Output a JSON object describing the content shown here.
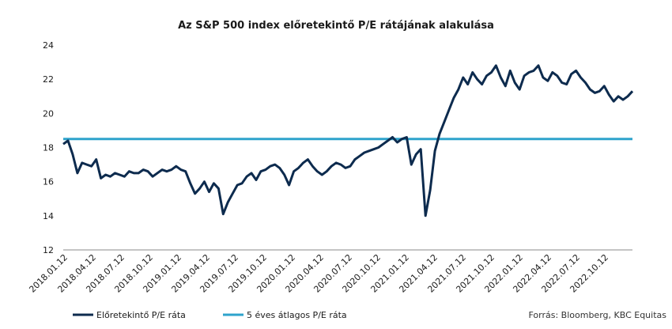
{
  "chart_data": {
    "type": "line",
    "title": "Az S&P 500 index előretekintő P/E rátájának alakulása",
    "source": "Forrás: Bloomberg, KBC Equitas",
    "ylim": [
      12,
      24
    ],
    "yticks": [
      "12",
      "14",
      "16",
      "18",
      "20",
      "22",
      "24"
    ],
    "xticks": [
      "2018.01.12",
      "2018.04.12",
      "2018.07.12",
      "2018.10.12",
      "2019.01.12",
      "2019.04.12",
      "2019.07.12",
      "2019.10.12",
      "2020.01.12",
      "2020.04.12",
      "2020.07.12",
      "2020.10.12",
      "2021.01.12",
      "2021.04.12",
      "2021.07.12",
      "2021.10.12",
      "2022.01.12",
      "2022.04.12",
      "2022.07.12",
      "2022.10.12"
    ],
    "grid": false,
    "legend_position": "bottom-left",
    "colors": {
      "pe": "#0d2b4e",
      "avg": "#2ea3cc"
    },
    "series": [
      {
        "name": "Előretekintő P/E ráta",
        "x": [
          0,
          0.5,
          1,
          1.5,
          2,
          2.5,
          3,
          3.5,
          4,
          4.5,
          5,
          5.5,
          6,
          6.5,
          7,
          7.5,
          8,
          8.5,
          9,
          9.5,
          10,
          10.5,
          11,
          11.5,
          12,
          12.5,
          13,
          13.5,
          14,
          14.5,
          15,
          15.5,
          16,
          16.5,
          17,
          17.5,
          18,
          18.5,
          19,
          19.5,
          20,
          20.5,
          21,
          21.5,
          22,
          22.5,
          23,
          23.5,
          24,
          24.5,
          25,
          25.5,
          26,
          26.5,
          27,
          27.5,
          28,
          28.5,
          29,
          29.5,
          30,
          30.5,
          31,
          31.5,
          32,
          32.5,
          33,
          33.5,
          34,
          34.5,
          35,
          35.5,
          36,
          36.5,
          37,
          37.5,
          38,
          38.5,
          39,
          39.5,
          40,
          40.5,
          41,
          41.5,
          42,
          42.5,
          43,
          43.5,
          44,
          44.5,
          45,
          45.5,
          46,
          46.5,
          47,
          47.5,
          48,
          48.5,
          49,
          49.5,
          50,
          50.5,
          51,
          51.5,
          52,
          52.5,
          53,
          53.5,
          54,
          54.5,
          55,
          55.5,
          56,
          56.5,
          57,
          57.5,
          58,
          58.5,
          59,
          59.5,
          60,
          60.5
        ],
        "values": [
          18.2,
          18.4,
          17.6,
          16.5,
          17.1,
          17.0,
          16.9,
          17.3,
          16.2,
          16.4,
          16.3,
          16.5,
          16.4,
          16.3,
          16.6,
          16.5,
          16.5,
          16.7,
          16.6,
          16.3,
          16.5,
          16.7,
          16.6,
          16.7,
          16.9,
          16.7,
          16.6,
          15.9,
          15.3,
          15.6,
          16.0,
          15.4,
          15.9,
          15.6,
          14.1,
          14.8,
          15.3,
          15.8,
          15.9,
          16.3,
          16.5,
          16.1,
          16.6,
          16.7,
          16.9,
          17.0,
          16.8,
          16.4,
          15.8,
          16.6,
          16.8,
          17.1,
          17.3,
          16.9,
          16.6,
          16.4,
          16.6,
          16.9,
          17.1,
          17.0,
          16.8,
          16.9,
          17.3,
          17.5,
          17.7,
          17.8,
          17.9,
          18.0,
          18.2,
          18.4,
          18.6,
          18.3,
          18.5,
          18.6,
          17.0,
          17.6,
          17.9,
          14.0,
          15.5,
          17.8,
          18.8,
          19.5,
          20.2,
          20.9,
          21.4,
          22.1,
          21.7,
          22.4,
          22.0,
          21.7,
          22.2,
          22.4,
          22.8,
          22.1,
          21.6,
          22.5,
          21.8,
          21.4,
          22.2,
          22.4,
          22.5,
          22.8,
          22.1,
          21.9,
          22.4,
          22.2,
          21.8,
          21.7,
          22.3,
          22.5,
          22.1,
          21.8,
          21.4,
          21.2,
          21.3,
          21.6,
          21.1,
          20.7,
          21.0,
          20.8,
          21.0,
          21.3
        ]
      },
      {
        "name": "5 éves átlagos P/E ráta",
        "value": 18.5
      }
    ]
  }
}
